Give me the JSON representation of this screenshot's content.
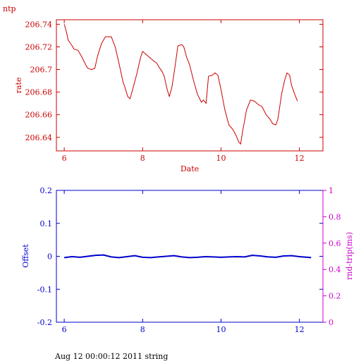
{
  "corner_label": "ntp",
  "footer": "Aug 12 00:00:12 2011 string",
  "colors": {
    "red": "#cc0000",
    "blue": "#0000cc",
    "magenta": "#cc00cc"
  },
  "chart_data": [
    {
      "type": "line",
      "xlabel": "Date",
      "ylabel": "rate",
      "xlim": [
        5.8,
        12.6
      ],
      "ylim": [
        206.628,
        206.744
      ],
      "xticks": [
        6,
        8,
        10,
        12
      ],
      "yticks": [
        206.64,
        206.66,
        206.68,
        206.7,
        206.72,
        206.74
      ],
      "ytick_labels": [
        "206.64",
        "206.66",
        "206.68",
        "206.7",
        "206.72",
        "206.74"
      ],
      "series": [
        {
          "color": "#cc0000",
          "points": [
            [
              6.0,
              206.74
            ],
            [
              6.05,
              206.734
            ],
            [
              6.1,
              206.726
            ],
            [
              6.2,
              206.721
            ],
            [
              6.25,
              206.718
            ],
            [
              6.35,
              206.717
            ],
            [
              6.45,
              206.711
            ],
            [
              6.55,
              206.704
            ],
            [
              6.6,
              206.701
            ],
            [
              6.7,
              206.7
            ],
            [
              6.78,
              206.701
            ],
            [
              6.85,
              206.712
            ],
            [
              6.95,
              206.723
            ],
            [
              7.05,
              206.729
            ],
            [
              7.2,
              206.729
            ],
            [
              7.3,
              206.72
            ],
            [
              7.4,
              206.705
            ],
            [
              7.5,
              206.689
            ],
            [
              7.55,
              206.684
            ],
            [
              7.62,
              206.676
            ],
            [
              7.68,
              206.674
            ],
            [
              7.75,
              206.683
            ],
            [
              7.85,
              206.696
            ],
            [
              7.95,
              206.711
            ],
            [
              8.0,
              206.716
            ],
            [
              8.1,
              206.713
            ],
            [
              8.2,
              206.71
            ],
            [
              8.3,
              206.707
            ],
            [
              8.35,
              206.706
            ],
            [
              8.42,
              206.702
            ],
            [
              8.5,
              206.698
            ],
            [
              8.55,
              206.694
            ],
            [
              8.62,
              206.683
            ],
            [
              8.68,
              206.676
            ],
            [
              8.75,
              206.685
            ],
            [
              8.82,
              206.701
            ],
            [
              8.9,
              206.721
            ],
            [
              9.0,
              206.722
            ],
            [
              9.05,
              206.72
            ],
            [
              9.12,
              206.711
            ],
            [
              9.2,
              206.704
            ],
            [
              9.3,
              206.69
            ],
            [
              9.4,
              206.678
            ],
            [
              9.5,
              206.671
            ],
            [
              9.55,
              206.673
            ],
            [
              9.62,
              206.67
            ],
            [
              9.68,
              206.694
            ],
            [
              9.78,
              206.695
            ],
            [
              9.85,
              206.697
            ],
            [
              9.92,
              206.695
            ],
            [
              10.0,
              206.682
            ],
            [
              10.1,
              206.664
            ],
            [
              10.2,
              206.651
            ],
            [
              10.3,
              206.647
            ],
            [
              10.38,
              206.642
            ],
            [
              10.45,
              206.636
            ],
            [
              10.5,
              206.634
            ],
            [
              10.55,
              206.645
            ],
            [
              10.65,
              206.664
            ],
            [
              10.75,
              206.673
            ],
            [
              10.85,
              206.672
            ],
            [
              10.95,
              206.669
            ],
            [
              11.05,
              206.667
            ],
            [
              11.15,
              206.66
            ],
            [
              11.25,
              206.656
            ],
            [
              11.32,
              206.652
            ],
            [
              11.4,
              206.651
            ],
            [
              11.45,
              206.656
            ],
            [
              11.55,
              206.679
            ],
            [
              11.62,
              206.69
            ],
            [
              11.68,
              206.697
            ],
            [
              11.75,
              206.695
            ],
            [
              11.8,
              206.686
            ],
            [
              11.88,
              206.678
            ],
            [
              11.95,
              206.672
            ]
          ]
        }
      ]
    },
    {
      "type": "line",
      "xlabel": "",
      "ylabel": "Offset",
      "ylabel_right": "rnd-trip(ms)",
      "xlim": [
        5.8,
        12.6
      ],
      "ylim": [
        -0.2,
        0.2
      ],
      "ylim_right": [
        0,
        1
      ],
      "xticks": [
        6,
        8,
        10,
        12
      ],
      "yticks": [
        -0.2,
        -0.1,
        0,
        0.1,
        0.2
      ],
      "ytick_labels": [
        "-0.2",
        "-0.1",
        "0",
        "0.1",
        "0.2"
      ],
      "yticks_right": [
        0,
        0.2,
        0.4,
        0.6,
        0.8,
        1
      ],
      "ytick_labels_right": [
        "0",
        "0.2",
        "0.4",
        "0.6",
        "0.8",
        "1"
      ],
      "series": [
        {
          "color": "#0000cc",
          "points": [
            [
              6.0,
              -0.004
            ],
            [
              6.2,
              -0.001
            ],
            [
              6.4,
              -0.003
            ],
            [
              6.6,
              0.0
            ],
            [
              6.8,
              0.003
            ],
            [
              7.0,
              0.004
            ],
            [
              7.2,
              -0.002
            ],
            [
              7.4,
              -0.004
            ],
            [
              7.6,
              -0.001
            ],
            [
              7.8,
              0.002
            ],
            [
              8.0,
              -0.003
            ],
            [
              8.2,
              -0.004
            ],
            [
              8.4,
              -0.002
            ],
            [
              8.6,
              0.0
            ],
            [
              8.8,
              0.002
            ],
            [
              9.0,
              -0.002
            ],
            [
              9.2,
              -0.004
            ],
            [
              9.4,
              -0.003
            ],
            [
              9.6,
              -0.001
            ],
            [
              9.8,
              -0.002
            ],
            [
              10.0,
              -0.003
            ],
            [
              10.2,
              -0.002
            ],
            [
              10.4,
              -0.001
            ],
            [
              10.6,
              -0.002
            ],
            [
              10.8,
              0.003
            ],
            [
              11.0,
              0.001
            ],
            [
              11.2,
              -0.002
            ],
            [
              11.4,
              -0.003
            ],
            [
              11.6,
              0.001
            ],
            [
              11.8,
              0.002
            ],
            [
              12.0,
              -0.001
            ],
            [
              12.2,
              -0.003
            ],
            [
              12.3,
              -0.004
            ]
          ]
        }
      ]
    }
  ]
}
